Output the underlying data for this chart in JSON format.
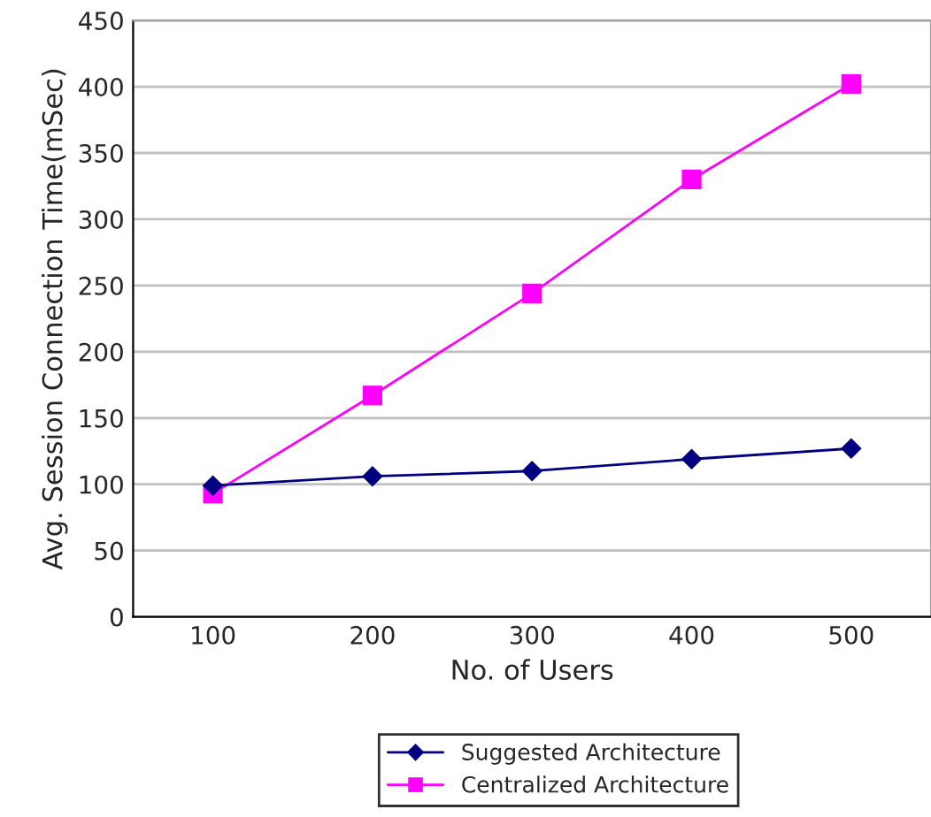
{
  "chart_data": {
    "type": "line",
    "xlabel": "No. of Users",
    "ylabel": "Avg. Session Connection Time(mSec)",
    "categories": [
      "100",
      "200",
      "300",
      "400",
      "500"
    ],
    "series": [
      {
        "name": "Suggested Architecture",
        "color": "#000080",
        "marker": "diamond",
        "values": [
          99,
          106,
          110,
          119,
          127
        ]
      },
      {
        "name": "Centralized Architecture",
        "color": "#ff00ff",
        "marker": "square",
        "values": [
          93,
          167,
          244,
          330,
          402
        ]
      }
    ],
    "ylim": [
      0,
      450
    ],
    "yticks": [
      0,
      50,
      100,
      150,
      200,
      250,
      300,
      350,
      400,
      450
    ],
    "grid": "y",
    "legend": "bottom"
  }
}
